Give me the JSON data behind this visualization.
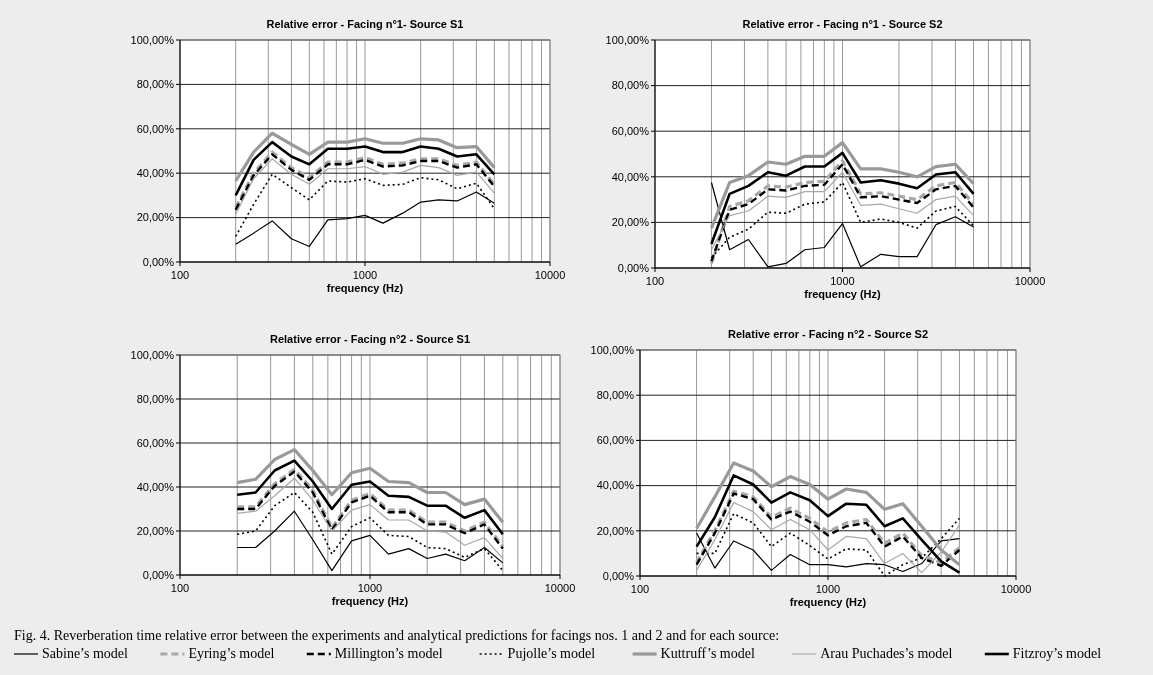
{
  "chart_data": [
    {
      "type": "line",
      "title": "Relative error - Facing n°1- Source S1",
      "xlabel": "frequency (Hz)",
      "log": "x",
      "xlim": [
        100,
        10000
      ],
      "xticks": [
        100,
        1000,
        10000
      ],
      "ylim": [
        0,
        100
      ],
      "yticks": [
        {
          "value": 0,
          "label": "0,00%"
        },
        {
          "value": 20,
          "label": "20,00%"
        },
        {
          "value": 40,
          "label": "40,00%"
        },
        {
          "value": 60,
          "label": "60,00%"
        },
        {
          "value": 80,
          "label": "80,00%"
        },
        {
          "value": 100,
          "label": "100,00%"
        }
      ],
      "grid": true,
      "legend": "bottom",
      "annotations": [
        "Fig. 4. Reverberation time relative error between the experiments and analytical predictions for facings nos. 1 and 2 and for each source:"
      ],
      "x": [
        200,
        250,
        315,
        400,
        500,
        630,
        800,
        1000,
        1250,
        1600,
        2000,
        2500,
        3150,
        4000,
        5000
      ],
      "series": [
        {
          "name": "Sabine’s model",
          "color": "#000000",
          "line_style": "solid",
          "values": [
            8,
            13,
            18.5,
            10.5,
            7,
            19,
            19.5,
            21,
            17.5,
            22,
            27,
            28,
            27.5,
            31.5,
            26.5
          ]
        },
        {
          "name": "Eyring’s model",
          "color": "#a8a8a8",
          "line_style": "dashed",
          "values": [
            24.5,
            40,
            49.5,
            42.5,
            38,
            45,
            45,
            47,
            44,
            44.5,
            46.5,
            46.5,
            43.5,
            45,
            35
          ]
        },
        {
          "name": "Millington’s model",
          "color": "#000000",
          "line_style": "dashed",
          "values": [
            23.5,
            39,
            48.5,
            41.5,
            37,
            44,
            44,
            46,
            43,
            43.5,
            45.5,
            45.5,
            42.5,
            44,
            34
          ]
        },
        {
          "name": "Pujolle’s model",
          "color": "#000000",
          "line_style": "dotted",
          "values": [
            11.5,
            26,
            39.5,
            33.5,
            28,
            36.5,
            36,
            37.5,
            34.5,
            35,
            38,
            37,
            33,
            35.5,
            24
          ]
        },
        {
          "name": "Kuttruff’s model",
          "color": "#999999",
          "line_style": "solid",
          "values": [
            36.5,
            49.5,
            58,
            53,
            48.5,
            54,
            54,
            55.5,
            53.5,
            53.5,
            55.5,
            55,
            51.5,
            52,
            42.5
          ]
        },
        {
          "name": "Arau Puchades’s model",
          "color": "#a8a8a8",
          "line_style": "solid",
          "values": [
            21.5,
            37.5,
            46.5,
            39.5,
            35,
            42,
            42,
            43,
            39.5,
            40.5,
            43.5,
            42.5,
            39,
            40.5,
            31
          ]
        },
        {
          "name": "Fitzroy’s model",
          "color": "#000000",
          "line_style": "solid",
          "values": [
            30,
            46,
            54,
            47.5,
            44,
            51,
            51,
            52,
            49.5,
            49.5,
            52,
            51,
            47.5,
            48.5,
            39.5
          ]
        }
      ]
    },
    {
      "type": "line",
      "title": "Relative error - Facing n°1 - Source S2",
      "xlabel": "frequency (Hz)",
      "log": "x",
      "xlim": [
        100,
        10000
      ],
      "xticks": [
        100,
        1000,
        10000
      ],
      "ylim": [
        0,
        100
      ],
      "yticks": [
        {
          "value": 0,
          "label": "0,00%"
        },
        {
          "value": 20,
          "label": "20,00%"
        },
        {
          "value": 40,
          "label": "40,00%"
        },
        {
          "value": 60,
          "label": "60,00%"
        },
        {
          "value": 80,
          "label": "80,00%"
        },
        {
          "value": 100,
          "label": "100,00%"
        }
      ],
      "grid": true,
      "legend": false,
      "x": [
        200,
        250,
        315,
        400,
        500,
        630,
        800,
        1000,
        1250,
        1600,
        2000,
        2500,
        3150,
        4000,
        5000
      ],
      "series": [
        {
          "color": "#000000",
          "line_style": "solid",
          "values": [
            37.5,
            8,
            12.5,
            0.5,
            2,
            8,
            9,
            19.5,
            0.5,
            6,
            5,
            5,
            19,
            22.5,
            18
          ]
        },
        {
          "color": "#a8a8a8",
          "line_style": "dashed",
          "values": [
            2,
            27,
            29.5,
            36,
            35.5,
            37.5,
            38,
            47,
            32.5,
            33,
            31.5,
            30,
            36,
            37.5,
            28
          ]
        },
        {
          "color": "#000000",
          "line_style": "dashed",
          "values": [
            3,
            25.5,
            28,
            34.5,
            34,
            36,
            36.5,
            45.5,
            31,
            31.5,
            30,
            28.5,
            34.5,
            36,
            26.5
          ]
        },
        {
          "color": "#000000",
          "line_style": "dotted",
          "values": [
            4.5,
            13.5,
            17,
            24.5,
            24,
            28,
            29,
            37.5,
            20,
            21.5,
            20,
            17.5,
            25,
            27,
            18.5
          ]
        },
        {
          "color": "#999999",
          "line_style": "solid",
          "values": [
            17.5,
            37.5,
            40.5,
            46.5,
            45.5,
            49,
            49,
            55,
            43.5,
            43.5,
            42,
            40,
            44.5,
            45.5,
            37
          ]
        },
        {
          "color": "#a8a8a8",
          "line_style": "solid",
          "values": [
            8,
            23,
            25,
            31.5,
            31,
            33.5,
            33.5,
            42,
            27.5,
            28,
            26,
            24,
            30,
            31.5,
            23
          ]
        },
        {
          "color": "#000000",
          "line_style": "solid",
          "values": [
            10.5,
            32.5,
            36,
            42,
            40.5,
            44.5,
            44.5,
            50.5,
            37.5,
            38.5,
            37,
            35,
            41,
            42,
            32.5
          ]
        }
      ]
    },
    {
      "type": "line",
      "title": "Relative error - Facing n°2 - Source S1",
      "xlabel": "frequency (Hz)",
      "log": "x",
      "xlim": [
        100,
        10000
      ],
      "xticks": [
        100,
        1000,
        10000
      ],
      "ylim": [
        0,
        100
      ],
      "yticks": [
        {
          "value": 0,
          "label": "0,00%"
        },
        {
          "value": 20,
          "label": "20,00%"
        },
        {
          "value": 40,
          "label": "40,00%"
        },
        {
          "value": 60,
          "label": "60,00%"
        },
        {
          "value": 80,
          "label": "80,00%"
        },
        {
          "value": 100,
          "label": "100,00%"
        }
      ],
      "grid": true,
      "legend": false,
      "x": [
        200,
        250,
        315,
        400,
        500,
        630,
        800,
        1000,
        1250,
        1600,
        2000,
        2500,
        3150,
        4000,
        5000
      ],
      "series": [
        {
          "color": "#000000",
          "line_style": "solid",
          "values": [
            12.5,
            12.5,
            20,
            29,
            16,
            2,
            15.5,
            18,
            9.5,
            12,
            7.5,
            9.5,
            6.5,
            12.5,
            5.5
          ]
        },
        {
          "color": "#a8a8a8",
          "line_style": "dashed",
          "values": [
            31,
            31,
            41.5,
            48,
            38.5,
            21.5,
            34,
            37,
            29.5,
            29.5,
            24,
            24,
            20,
            24,
            13
          ]
        },
        {
          "color": "#000000",
          "line_style": "dashed",
          "values": [
            30,
            30,
            40.5,
            47,
            37.5,
            20.5,
            33,
            36,
            28.5,
            28.5,
            23,
            23,
            19,
            23,
            12
          ]
        },
        {
          "color": "#000000",
          "line_style": "dotted",
          "values": [
            18.5,
            20,
            31.5,
            37.5,
            28.5,
            9.5,
            22,
            26,
            18,
            17.5,
            12.5,
            12,
            8,
            12,
            2
          ]
        },
        {
          "color": "#999999",
          "line_style": "solid",
          "values": [
            42,
            43.5,
            52.5,
            57,
            47.5,
            36.5,
            46.5,
            48.5,
            42.5,
            42,
            37.5,
            37.5,
            32,
            34.5,
            24
          ]
        },
        {
          "color": "#a8a8a8",
          "line_style": "solid",
          "values": [
            28,
            29,
            36,
            44,
            34,
            20,
            29.5,
            32,
            25,
            25,
            20,
            19.5,
            13.5,
            17,
            7.5
          ]
        },
        {
          "color": "#000000",
          "line_style": "solid",
          "values": [
            36.5,
            37.5,
            47.5,
            52,
            42.5,
            30,
            41,
            42.5,
            36,
            35.5,
            31.5,
            31.5,
            26,
            29.5,
            18.5
          ]
        }
      ]
    },
    {
      "type": "line",
      "title": "Relative error - Facing n°2 - Source S2",
      "xlabel": "frequency (Hz)",
      "log": "x",
      "xlim": [
        100,
        10000
      ],
      "xticks": [
        100,
        1000,
        10000
      ],
      "ylim": [
        0,
        100
      ],
      "yticks": [
        {
          "value": 0,
          "label": "0,00%"
        },
        {
          "value": 20,
          "label": "20,00%"
        },
        {
          "value": 40,
          "label": "40,00%"
        },
        {
          "value": 60,
          "label": "60,00%"
        },
        {
          "value": 80,
          "label": "80,00%"
        },
        {
          "value": 100,
          "label": "100,00%"
        }
      ],
      "grid": true,
      "legend": false,
      "x": [
        200,
        250,
        315,
        400,
        500,
        630,
        800,
        1000,
        1250,
        1600,
        2000,
        2500,
        3150,
        4000,
        5000
      ],
      "series": [
        {
          "color": "#000000",
          "line_style": "solid",
          "values": [
            19,
            3.5,
            15.5,
            11.5,
            2.5,
            9.5,
            5,
            5,
            4,
            5.5,
            5,
            2,
            5.5,
            15.5,
            16.5
          ]
        },
        {
          "color": "#a8a8a8",
          "line_style": "dashed",
          "values": [
            6,
            20,
            37.5,
            35,
            26,
            30,
            25.5,
            19.5,
            23.5,
            25,
            14.5,
            19,
            9,
            6,
            12.5
          ]
        },
        {
          "color": "#000000",
          "line_style": "dashed",
          "values": [
            5,
            19,
            36.5,
            34,
            25,
            28.5,
            24,
            18,
            22,
            23.5,
            13,
            17.5,
            8,
            4.5,
            11.5
          ]
        },
        {
          "color": "#000000",
          "line_style": "dotted",
          "values": [
            10,
            10,
            27.5,
            23.5,
            13,
            19,
            13.5,
            7.5,
            12,
            11.5,
            0,
            5,
            8,
            16.5,
            25.5
          ]
        },
        {
          "color": "#999999",
          "line_style": "solid",
          "values": [
            21,
            35,
            50,
            46.5,
            39.5,
            44,
            40.5,
            34,
            38.5,
            37,
            29.5,
            32,
            22,
            11.5,
            5
          ]
        },
        {
          "color": "#a8a8a8",
          "line_style": "solid",
          "values": [
            2.5,
            16,
            32.5,
            28.5,
            20.5,
            25,
            20.5,
            11.5,
            17.5,
            16.5,
            5.5,
            10,
            1.5,
            10.5,
            22.5
          ]
        },
        {
          "color": "#000000",
          "line_style": "solid",
          "values": [
            13,
            26,
            44.5,
            40.5,
            32.5,
            37,
            33.5,
            26.5,
            32,
            31.5,
            22,
            25.5,
            16,
            6.5,
            1.5
          ]
        }
      ]
    }
  ]
}
